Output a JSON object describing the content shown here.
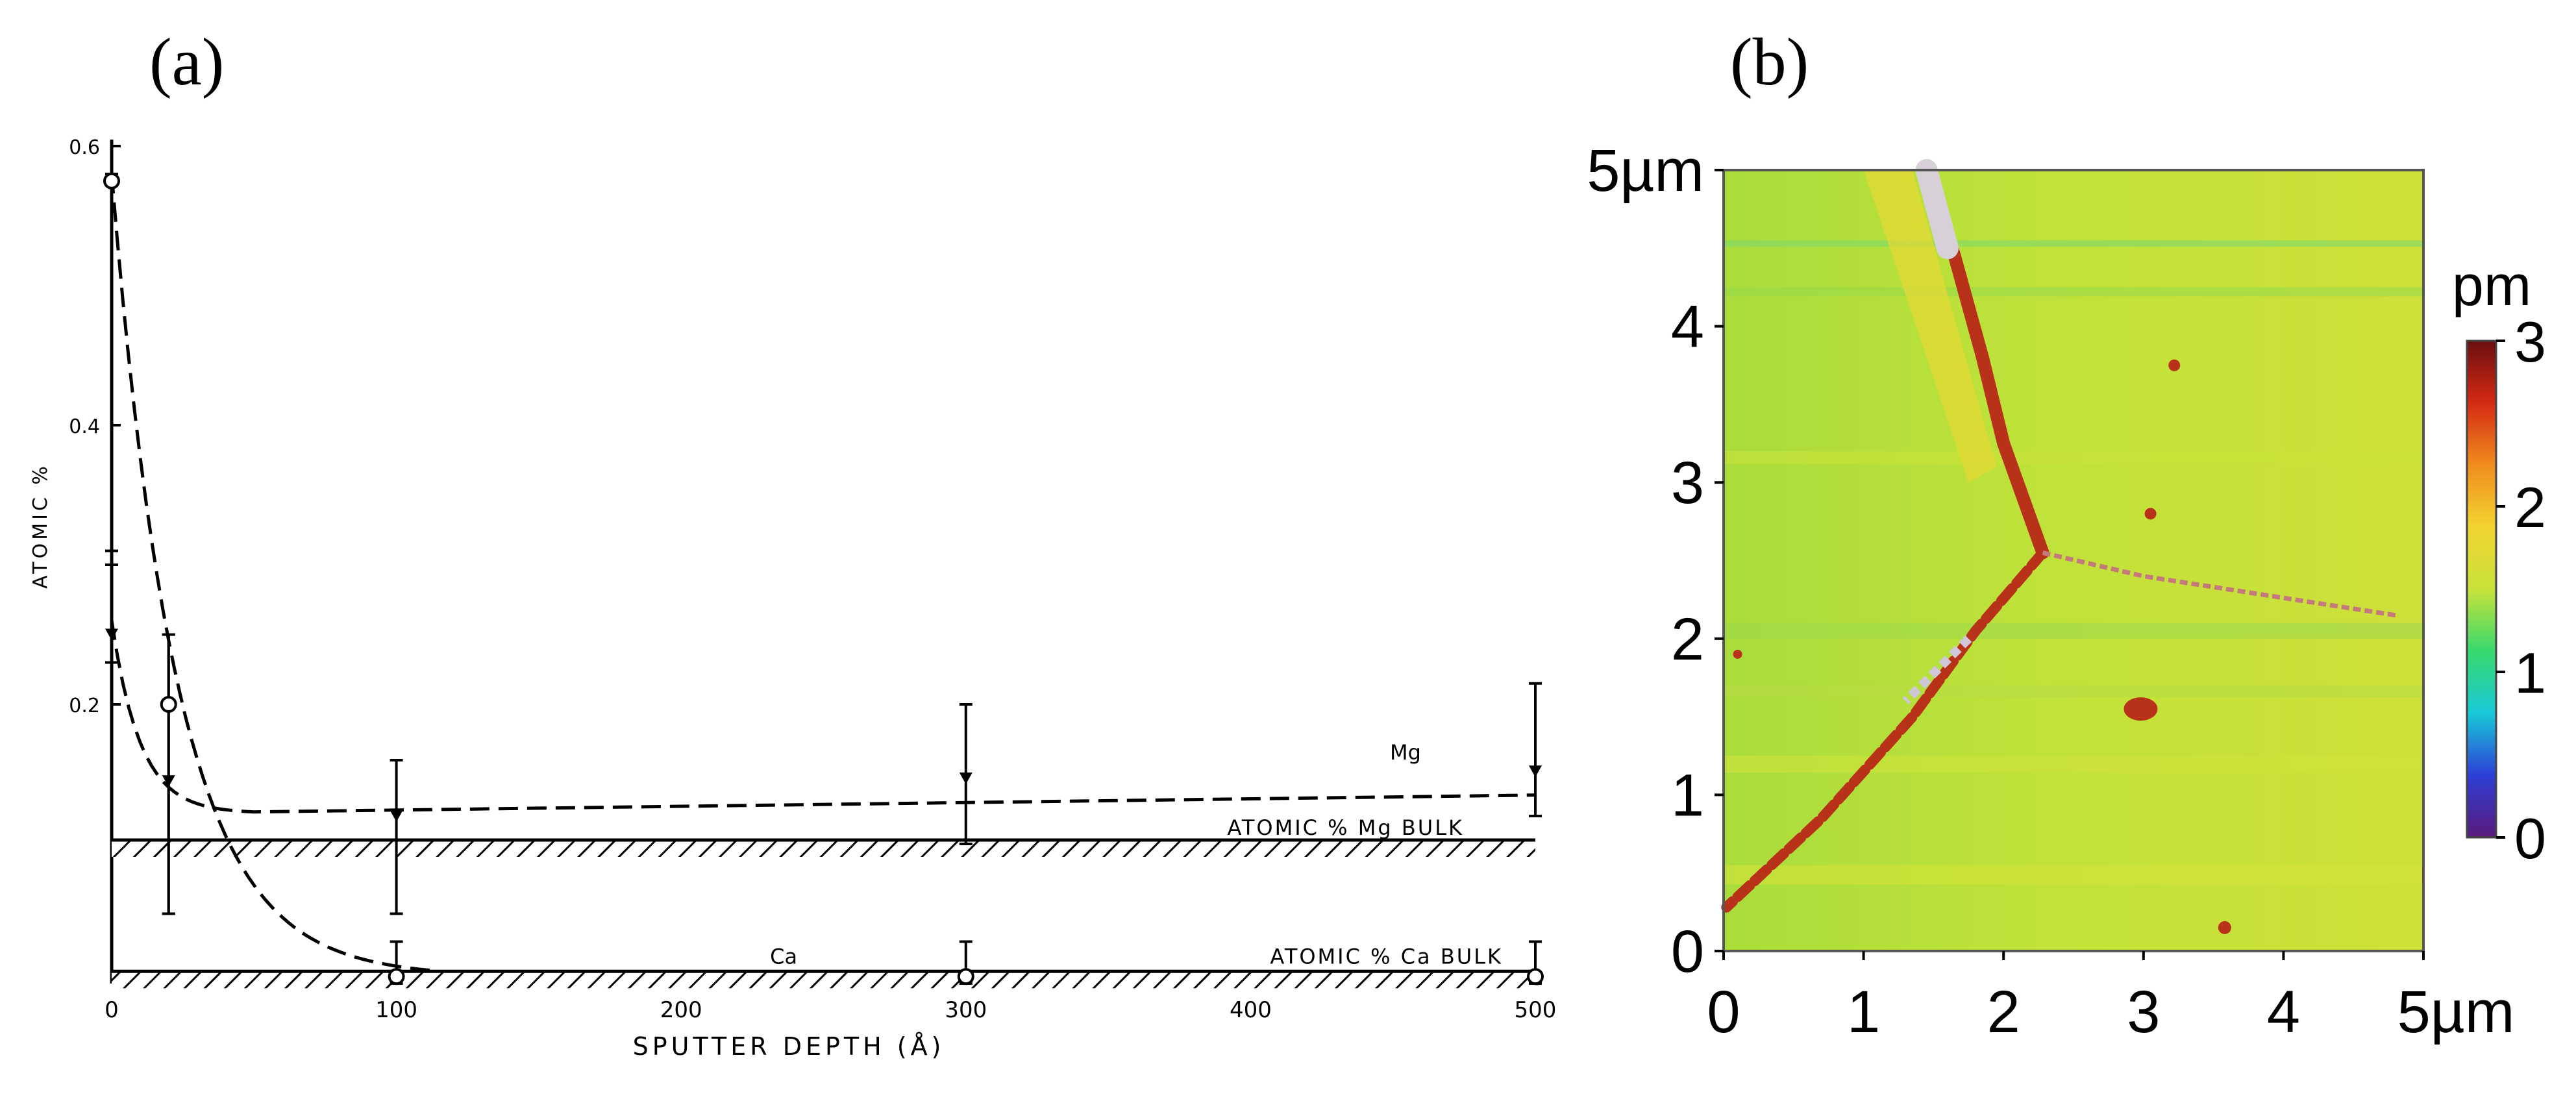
{
  "panels": {
    "a_label": "(a)",
    "b_label": "(b)"
  },
  "chart_data": [
    {
      "type": "line",
      "xlabel": "SPUTTER DEPTH (Å)",
      "ylabel": "ATOMIC %",
      "xlim": [
        0,
        500
      ],
      "ylim": [
        0,
        0.6
      ],
      "xticks": [
        0,
        100,
        200,
        300,
        400,
        500
      ],
      "xtick_labels": [
        "0",
        "100",
        "200",
        "300",
        "400",
        "500"
      ],
      "yticks": [
        0.2,
        0.4,
        0.6
      ],
      "ytick_labels": [
        "0.2",
        "0.4",
        "0.6"
      ],
      "grid": false,
      "series": [
        {
          "name": "Mg",
          "marker": "triangle",
          "x": [
            0,
            20,
            100,
            300,
            500
          ],
          "y": [
            0.25,
            0.145,
            0.12,
            0.147,
            0.152
          ],
          "yerr_low": [
            0.23,
            0.05,
            0.05,
            0.1,
            0.12
          ],
          "yerr_high": [
            0.3,
            0.25,
            0.16,
            0.2,
            0.215
          ]
        },
        {
          "name": "Ca",
          "marker": "circle",
          "x": [
            0,
            20,
            100,
            300,
            500
          ],
          "y": [
            0.575,
            0.2,
            0.005,
            0.005,
            0.005
          ],
          "yerr_low": [
            0.31,
            0.05,
            0,
            0,
            0
          ],
          "yerr_high": [
            0.58,
            0.25,
            0.03,
            0.03,
            0.03
          ]
        }
      ],
      "bulk_levels": [
        {
          "label": "ATOMIC % Mg BULK",
          "value": 0.1
        },
        {
          "label": "ATOMIC % Ca BULK",
          "value": 0.005
        }
      ],
      "annotations": [
        "Mg",
        "Ca"
      ]
    },
    {
      "type": "heatmap",
      "xlim": [
        0,
        5
      ],
      "ylim": [
        0,
        5
      ],
      "xtick_labels": [
        "0",
        "1",
        "2",
        "3",
        "4",
        "5µm"
      ],
      "ytick_labels": [
        "0",
        "1",
        "2",
        "3",
        "4",
        "5µm"
      ],
      "colorbar": {
        "unit": "pm",
        "range": [
          0,
          3
        ],
        "tick_labels": [
          "0",
          "1",
          "2",
          "3"
        ],
        "colors": [
          "#5a1a7a",
          "#2d3fd6",
          "#19c9d8",
          "#38d96e",
          "#c8e23a",
          "#f2d431",
          "#f08d1d",
          "#d42a14",
          "#6b0f0f"
        ]
      },
      "background_color": "#b9e03a",
      "boundary_color": "#b8321a"
    }
  ]
}
